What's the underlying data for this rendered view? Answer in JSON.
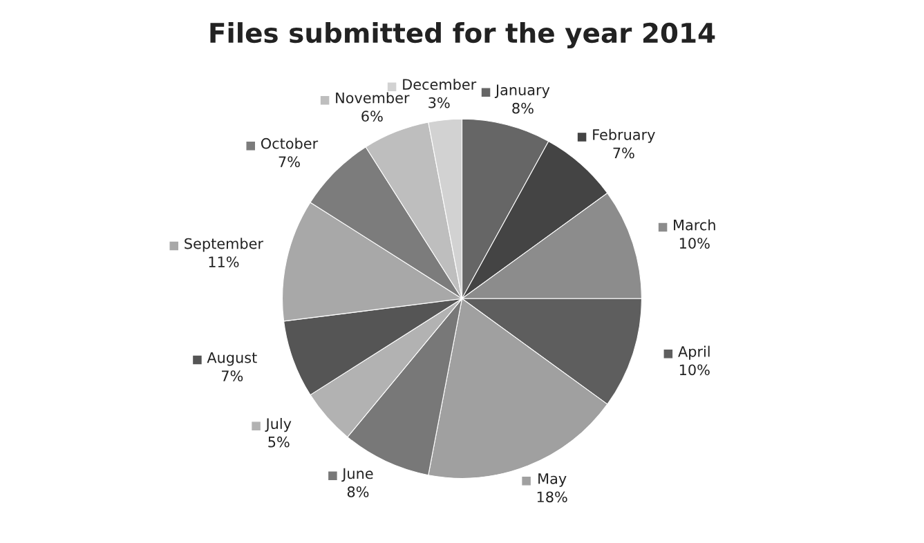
{
  "chart_data": {
    "type": "pie",
    "title": "Files submitted for the year 2014",
    "categories": [
      "January",
      "February",
      "March",
      "April",
      "May",
      "June",
      "July",
      "August",
      "September",
      "October",
      "November",
      "December"
    ],
    "values": [
      8,
      7,
      10,
      10,
      18,
      8,
      5,
      7,
      11,
      7,
      6,
      3
    ],
    "colors": [
      "#666666",
      "#444444",
      "#8c8c8c",
      "#5e5e5e",
      "#a0a0a0",
      "#787878",
      "#b2b2b2",
      "#555555",
      "#a8a8a8",
      "#7c7c7c",
      "#bebebe",
      "#d2d2d2"
    ],
    "value_labels": [
      "8%",
      "7%",
      "10%",
      "10%",
      "18%",
      "8%",
      "5%",
      "7%",
      "11%",
      "7%",
      "6%",
      "3%"
    ],
    "legend": "center"
  }
}
